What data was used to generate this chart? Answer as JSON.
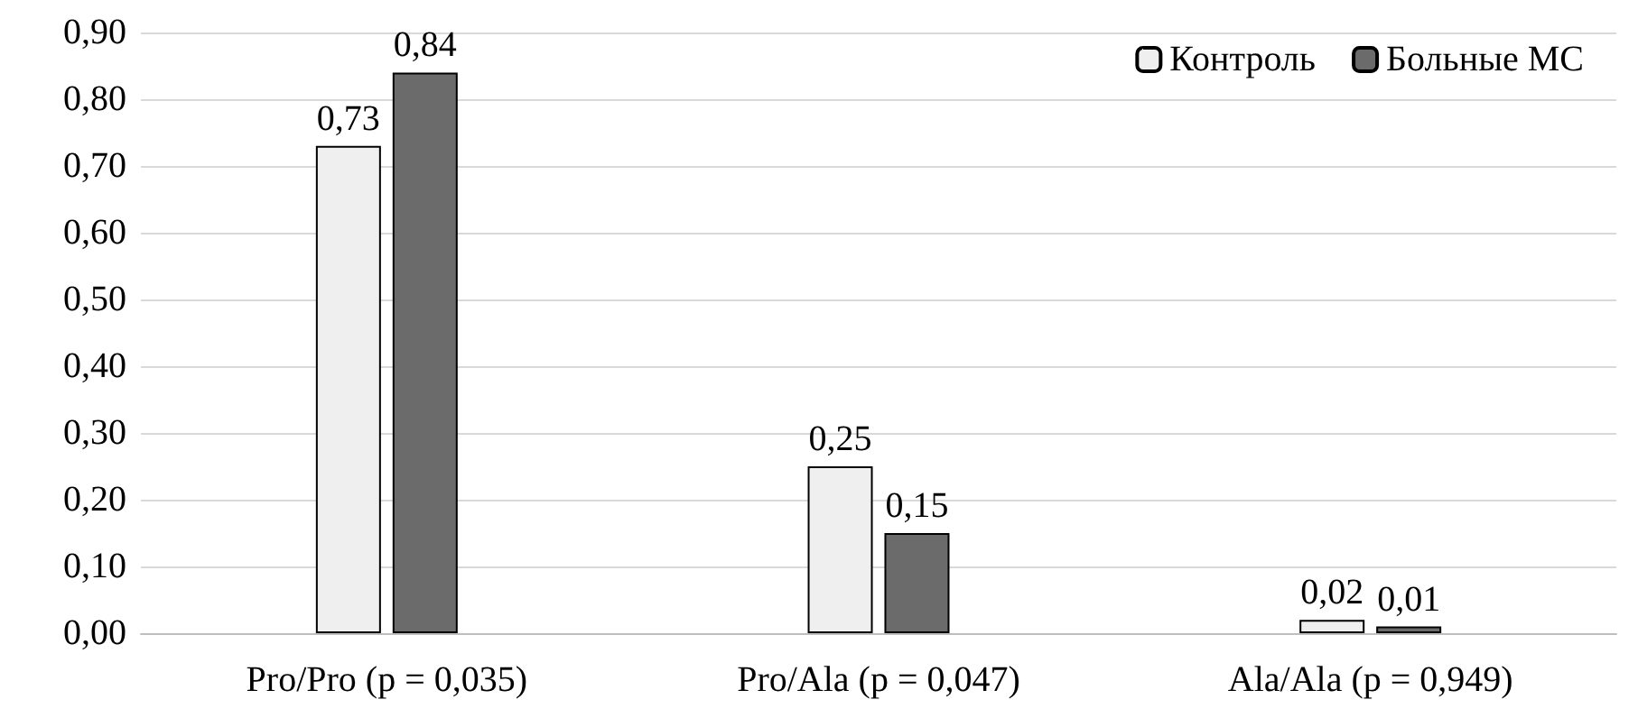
{
  "chart_data": {
    "type": "bar",
    "categories": [
      "Pro/Pro (p = 0,035)",
      "Pro/Ala (p = 0,047)",
      "Ala/Ala (p = 0,949)"
    ],
    "series": [
      {
        "name": "Контроль",
        "color": "#efefef",
        "values": [
          0.73,
          0.25,
          0.02
        ],
        "value_labels": [
          "0,73",
          "0,25",
          "0,02"
        ]
      },
      {
        "name": "Больные МС",
        "color": "#6b6b6b",
        "values": [
          0.84,
          0.15,
          0.01
        ],
        "value_labels": [
          "0,84",
          "0,15",
          "0,01"
        ]
      }
    ],
    "ylim": [
      0,
      0.9
    ],
    "yticks": [
      {
        "value": 0,
        "label": "0,00"
      },
      {
        "value": 0.1,
        "label": "0,10"
      },
      {
        "value": 0.2,
        "label": "0,20"
      },
      {
        "value": 0.3,
        "label": "0,30"
      },
      {
        "value": 0.4,
        "label": "0,40"
      },
      {
        "value": 0.5,
        "label": "0,50"
      },
      {
        "value": 0.6,
        "label": "0,60"
      },
      {
        "value": 0.7,
        "label": "0,70"
      },
      {
        "value": 0.8,
        "label": "0,80"
      },
      {
        "value": 0.9,
        "label": "0,90"
      }
    ],
    "grid": "y",
    "legend": "top right"
  }
}
